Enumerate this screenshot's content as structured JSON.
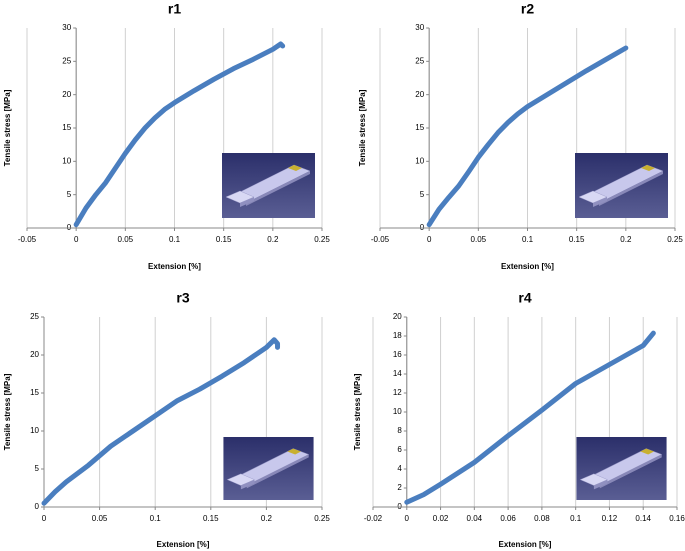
{
  "chart_data": [
    {
      "type": "line",
      "title": "r1",
      "x_label": "Extension [%]",
      "y_label": "Tensile stress [MPa]",
      "color": "#4a7ebf",
      "x": [
        0,
        0.01,
        0.02,
        0.03,
        0.04,
        0.05,
        0.06,
        0.07,
        0.08,
        0.09,
        0.1,
        0.12,
        0.14,
        0.16,
        0.18,
        0.2,
        0.208,
        0.21
      ],
      "values": [
        0.5,
        3,
        5,
        6.8,
        9,
        11.2,
        13.2,
        15,
        16.5,
        17.8,
        18.8,
        20.6,
        22.3,
        23.9,
        25.3,
        26.8,
        27.6,
        27.3
      ],
      "xlim": [
        -0.05,
        0.25
      ],
      "xticks": [
        -0.05,
        0,
        0.05,
        0.1,
        0.15,
        0.2,
        0.25
      ],
      "ylim": [
        0,
        30
      ],
      "yticks": [
        0,
        5,
        10,
        15,
        20,
        25,
        30
      ],
      "grid": true
    },
    {
      "type": "line",
      "title": "r2",
      "x_label": "Extension [%]",
      "y_label": "Tensile stress [MPa]",
      "color": "#4a7ebf",
      "x": [
        0,
        0.01,
        0.02,
        0.03,
        0.04,
        0.05,
        0.06,
        0.07,
        0.08,
        0.09,
        0.1,
        0.12,
        0.14,
        0.16,
        0.18,
        0.2
      ],
      "values": [
        0.5,
        2.8,
        4.6,
        6.3,
        8.4,
        10.6,
        12.5,
        14.3,
        15.8,
        17.1,
        18.2,
        20,
        21.8,
        23.6,
        25.3,
        27
      ],
      "xlim": [
        -0.05,
        0.25
      ],
      "xticks": [
        -0.05,
        0,
        0.05,
        0.1,
        0.15,
        0.2,
        0.25
      ],
      "ylim": [
        0,
        30
      ],
      "yticks": [
        0,
        5,
        10,
        15,
        20,
        25,
        30
      ],
      "grid": true
    },
    {
      "type": "line",
      "title": "r3",
      "x_label": "Extension [%]",
      "y_label": "Tensile stress [MPa]",
      "color": "#4a7ebf",
      "x": [
        0,
        0.01,
        0.02,
        0.04,
        0.06,
        0.08,
        0.1,
        0.12,
        0.14,
        0.16,
        0.18,
        0.2,
        0.207,
        0.21,
        0.21
      ],
      "values": [
        0.5,
        2,
        3.3,
        5.5,
        8,
        10,
        12,
        14,
        15.5,
        17.2,
        19,
        21,
        22,
        21.5,
        21
      ],
      "xlim": [
        0,
        0.25
      ],
      "xticks": [
        0,
        0.05,
        0.1,
        0.15,
        0.2,
        0.25
      ],
      "ylim": [
        0,
        25
      ],
      "yticks": [
        0,
        5,
        10,
        15,
        20,
        25
      ],
      "grid": true
    },
    {
      "type": "line",
      "title": "r4",
      "x_label": "Extension [%]",
      "y_label": "Tensile stress [MPa]",
      "color": "#4a7ebf",
      "x": [
        0,
        0.01,
        0.02,
        0.04,
        0.06,
        0.08,
        0.1,
        0.12,
        0.14,
        0.146
      ],
      "values": [
        0.5,
        1.3,
        2.4,
        4.7,
        7.5,
        10.2,
        13,
        15,
        17,
        18.3
      ],
      "xlim": [
        -0.02,
        0.16
      ],
      "xticks": [
        -0.02,
        0,
        0.02,
        0.04,
        0.06,
        0.08,
        0.1,
        0.12,
        0.14,
        0.16
      ],
      "ylim": [
        0,
        20
      ],
      "yticks": [
        0,
        2,
        4,
        6,
        8,
        10,
        12,
        14,
        16,
        18,
        20
      ],
      "grid": true
    }
  ]
}
